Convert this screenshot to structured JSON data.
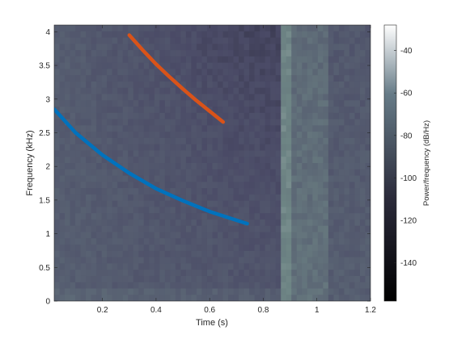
{
  "chart_data": {
    "type": "heatmap",
    "title": "",
    "xlabel": "Time (s)",
    "ylabel": "Frequency (kHz)",
    "xlim": [
      0.02,
      1.2
    ],
    "ylim": [
      0,
      4.1
    ],
    "xticks": [
      0.2,
      0.4,
      0.6,
      0.8,
      1,
      1.2
    ],
    "yticks": [
      0,
      0.5,
      1,
      1.5,
      2,
      2.5,
      3,
      3.5,
      4
    ],
    "grid": false,
    "colormap": "bone",
    "colorbar": {
      "label": "Power/frequency (dB/Hz)",
      "range": [
        -158,
        -28
      ],
      "ticks": [
        -40,
        -60,
        -80,
        -100,
        -120,
        -140
      ]
    },
    "series": [
      {
        "color": "#0072BD",
        "x": [
          0.02,
          0.1,
          0.2,
          0.3,
          0.4,
          0.5,
          0.6,
          0.7,
          0.74
        ],
        "y": [
          2.85,
          2.5,
          2.17,
          1.9,
          1.67,
          1.49,
          1.33,
          1.2,
          1.15
        ]
      },
      {
        "color": "#D95319",
        "x": [
          0.3,
          0.35,
          0.4,
          0.45,
          0.5,
          0.55,
          0.6,
          0.65
        ],
        "y": [
          3.95,
          3.73,
          3.52,
          3.33,
          3.15,
          2.98,
          2.82,
          2.66
        ]
      }
    ]
  }
}
